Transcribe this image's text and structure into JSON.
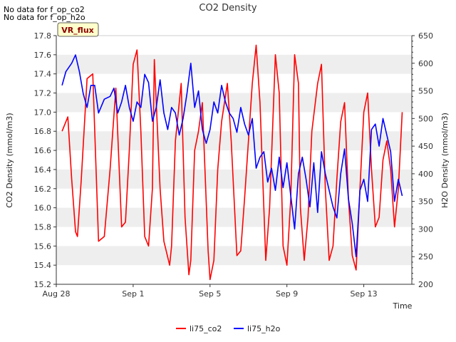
{
  "notes": [
    "No data for f_op_co2",
    "No data for f_op_h2o"
  ],
  "badge": "VR_flux",
  "chart_data": {
    "type": "line",
    "title": "CO2 Density",
    "xlabel": "Time",
    "ylabel_left": "CO2 Density (mmol/m3)",
    "ylabel_right": "H2O Density (mmol/m3)",
    "x_range_days": [
      0,
      18.5
    ],
    "x_ticks": [
      {
        "day": 0,
        "label": "Aug 28"
      },
      {
        "day": 4,
        "label": "Sep 1"
      },
      {
        "day": 8,
        "label": "Sep 5"
      },
      {
        "day": 12,
        "label": "Sep 9"
      },
      {
        "day": 16,
        "label": "Sep 13"
      }
    ],
    "ylim_left": [
      15.2,
      17.8
    ],
    "yticks_left": [
      "15.2",
      "15.4",
      "15.6",
      "15.8",
      "16.0",
      "16.2",
      "16.4",
      "16.6",
      "16.8",
      "17.0",
      "17.2",
      "17.4",
      "17.6",
      "17.8"
    ],
    "ylim_right": [
      200,
      650
    ],
    "yticks_right": [
      "200",
      "250",
      "300",
      "350",
      "400",
      "450",
      "500",
      "550",
      "600",
      "650"
    ],
    "grid": "horizontal bands",
    "legend_position": "bottom",
    "series": [
      {
        "name": "li75_co2",
        "axis": "left",
        "color": "#ff0000",
        "x": [
          0.3,
          0.6,
          0.8,
          1.0,
          1.1,
          1.3,
          1.6,
          1.9,
          2.2,
          2.5,
          2.8,
          3.1,
          3.4,
          3.6,
          3.8,
          4.0,
          4.2,
          4.4,
          4.6,
          4.8,
          5.0,
          5.1,
          5.4,
          5.6,
          5.9,
          6.0,
          6.2,
          6.5,
          6.7,
          6.9,
          7.0,
          7.2,
          7.4,
          7.6,
          7.9,
          8.0,
          8.2,
          8.4,
          8.6,
          8.9,
          9.1,
          9.4,
          9.6,
          9.8,
          10.0,
          10.2,
          10.4,
          10.6,
          10.8,
          10.9,
          11.1,
          11.4,
          11.6,
          11.8,
          12.0,
          12.2,
          12.4,
          12.6,
          12.7,
          12.9,
          13.1,
          13.3,
          13.6,
          13.8,
          14.0,
          14.2,
          14.4,
          14.6,
          14.8,
          15.0,
          15.2,
          15.4,
          15.6,
          15.8,
          16.0,
          16.2,
          16.4,
          16.6,
          16.8,
          17.0,
          17.2,
          17.4,
          17.6,
          17.8,
          18.0
        ],
        "values": [
          16.8,
          16.95,
          16.3,
          15.75,
          15.7,
          16.3,
          17.35,
          17.4,
          15.65,
          15.7,
          16.4,
          17.25,
          15.8,
          15.85,
          16.6,
          17.5,
          17.65,
          16.8,
          15.7,
          15.6,
          16.2,
          17.55,
          16.2,
          15.65,
          15.4,
          15.6,
          16.7,
          17.3,
          15.9,
          15.3,
          15.45,
          16.6,
          16.8,
          17.1,
          15.55,
          15.25,
          15.45,
          16.4,
          16.9,
          17.3,
          16.7,
          15.5,
          15.55,
          16.1,
          16.7,
          17.3,
          17.7,
          17.1,
          16.0,
          15.45,
          16.0,
          17.6,
          17.2,
          15.6,
          15.4,
          16.1,
          17.6,
          17.3,
          16.0,
          15.45,
          15.9,
          16.8,
          17.3,
          17.5,
          16.2,
          15.45,
          15.6,
          16.3,
          16.9,
          17.1,
          16.1,
          15.5,
          15.35,
          16.2,
          17.0,
          17.2,
          16.4,
          15.8,
          15.9,
          16.5,
          16.7,
          16.4,
          15.8,
          16.2,
          17.0
        ]
      },
      {
        "name": "li75_h2o",
        "axis": "right",
        "color": "#0000ff",
        "x": [
          0.3,
          0.5,
          0.8,
          1.0,
          1.2,
          1.4,
          1.6,
          1.8,
          2.0,
          2.2,
          2.5,
          2.8,
          3.0,
          3.2,
          3.4,
          3.6,
          3.8,
          4.0,
          4.2,
          4.4,
          4.6,
          4.8,
          5.0,
          5.2,
          5.4,
          5.6,
          5.8,
          6.0,
          6.2,
          6.4,
          6.6,
          6.8,
          7.0,
          7.2,
          7.4,
          7.6,
          7.8,
          8.0,
          8.2,
          8.4,
          8.6,
          8.8,
          9.0,
          9.2,
          9.4,
          9.6,
          9.8,
          10.0,
          10.2,
          10.4,
          10.6,
          10.8,
          11.0,
          11.2,
          11.4,
          11.6,
          11.8,
          12.0,
          12.2,
          12.4,
          12.6,
          12.8,
          13.0,
          13.2,
          13.4,
          13.6,
          13.8,
          14.0,
          14.2,
          14.4,
          14.6,
          14.8,
          15.0,
          15.2,
          15.4,
          15.6,
          15.8,
          16.0,
          16.2,
          16.4,
          16.6,
          16.8,
          17.0,
          17.2,
          17.4,
          17.6,
          17.8,
          18.0
        ],
        "values": [
          560,
          585,
          600,
          615,
          585,
          545,
          520,
          560,
          560,
          510,
          535,
          540,
          555,
          510,
          530,
          560,
          520,
          495,
          530,
          520,
          580,
          565,
          495,
          520,
          570,
          510,
          480,
          520,
          510,
          470,
          500,
          545,
          600,
          520,
          550,
          480,
          455,
          480,
          530,
          510,
          560,
          530,
          510,
          500,
          475,
          520,
          490,
          470,
          500,
          410,
          430,
          440,
          385,
          410,
          370,
          430,
          375,
          420,
          360,
          300,
          400,
          430,
          390,
          340,
          420,
          330,
          440,
          400,
          370,
          340,
          320,
          400,
          445,
          355,
          310,
          250,
          370,
          390,
          350,
          480,
          490,
          450,
          500,
          470,
          440,
          350,
          390,
          360
        ]
      }
    ]
  }
}
